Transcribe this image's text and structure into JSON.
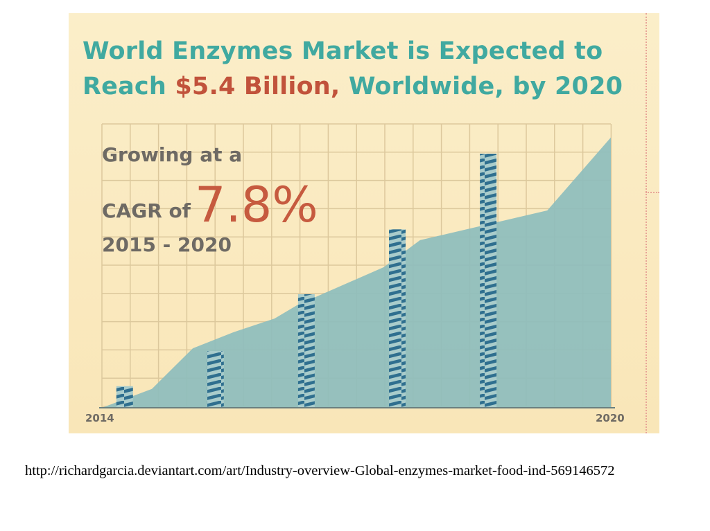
{
  "page": {
    "source_text": "http://richardgarcia.deviantart.com/art/Industry-overview-Global-enzymes-market-food-ind-569146572"
  },
  "infographic": {
    "title_line1": "World Enzymes Market is Expected to",
    "title_line2_pre": "Reach ",
    "title_line2_highlight": "$5.4 Billion,",
    "title_line2_post": " Worldwide, by 2020",
    "growth_line1": "Growing at a",
    "growth_line2_prefix": "CAGR of",
    "growth_value": "7.8%",
    "growth_line3": "2015 - 2020"
  },
  "colors": {
    "teal_title": "#40a9a0",
    "highlight": "#c1523b",
    "area_fill": "#8dbdbd",
    "stripe_dark": "#2f6f8f",
    "grid": "#dcc89c",
    "background": "#fbeec9"
  },
  "chart_data": {
    "type": "area",
    "title": "World Enzymes Market",
    "x": [
      0,
      0.55,
      1.0,
      1.45,
      1.9,
      2.15,
      3.1,
      3.5,
      4.9,
      5.6
    ],
    "y": [
      0,
      0.07,
      0.22,
      0.28,
      0.33,
      0.38,
      0.52,
      0.62,
      0.73,
      1.0
    ],
    "bars": [
      {
        "x": 0.25,
        "y": 0.08
      },
      {
        "x": 1.25,
        "y": 0.21
      },
      {
        "x": 2.25,
        "y": 0.42
      },
      {
        "x": 3.25,
        "y": 0.66
      },
      {
        "x": 4.25,
        "y": 0.94
      }
    ],
    "xlim": [
      0,
      5.6
    ],
    "ylim": [
      0,
      1.05
    ],
    "tick_labels": {
      "start": "2014",
      "end": "2020"
    },
    "grid": true
  }
}
